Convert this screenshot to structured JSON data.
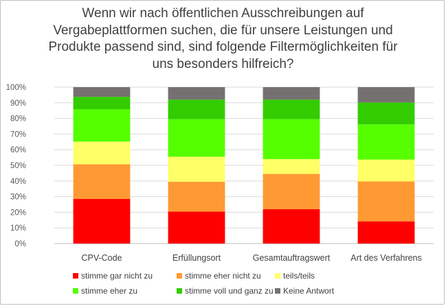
{
  "chart_data": {
    "type": "bar",
    "stacked": "percent",
    "title": "Wenn wir nach öffentlichen Ausschreibungen auf\nVergabeplattformen suchen, die für unsere Leistungen und\nProdukte passend sind, sind folgende Filtermöglichkeiten für\nuns besonders hilfreich?",
    "categories": [
      "CPV-Code",
      "Erfüllungsort",
      "Gesamtauftragswert",
      "Art des Verfahrens"
    ],
    "y_ticks": [
      "0%",
      "10%",
      "20%",
      "30%",
      "40%",
      "50%",
      "60%",
      "70%",
      "80%",
      "90%",
      "100%"
    ],
    "ylim": [
      0,
      100
    ],
    "grid": true,
    "legend_position": "bottom",
    "series": [
      {
        "name": "stimme gar nicht zu",
        "color": "#ff0000",
        "values": [
          28.5,
          20.5,
          22,
          14.2
        ]
      },
      {
        "name": "stimme eher nicht zu",
        "color": "#ff9933",
        "values": [
          22.2,
          19,
          22.5,
          25.5
        ]
      },
      {
        "name": "teils/teils",
        "color": "#ffff66",
        "values": [
          14.5,
          16,
          9.5,
          14
        ]
      },
      {
        "name": "stimme eher zu",
        "color": "#55ff00",
        "values": [
          20.6,
          24,
          25.5,
          22.5
        ]
      },
      {
        "name": "stimme voll und ganz zu",
        "color": "#33cc00",
        "values": [
          8,
          12.5,
          12.5,
          14
        ]
      },
      {
        "name": "Keine Antwort",
        "color": "#767171",
        "values": [
          6.2,
          8,
          8,
          9.8
        ]
      }
    ]
  }
}
